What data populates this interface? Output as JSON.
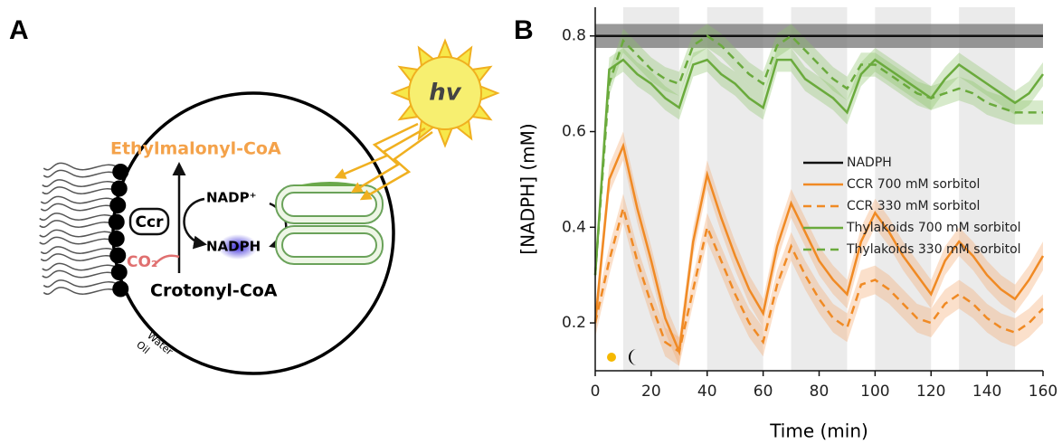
{
  "panel_a": {
    "label": "A",
    "hv": "hv",
    "product": "Ethylmalonyl-CoA",
    "enzyme": "Ccr",
    "oxidized": "NADP⁺",
    "reduced": "NADPH",
    "co2": "CO₂",
    "substrate": "Crotonyl-CoA",
    "water": "Water",
    "oil": "Oil"
  },
  "chart_data": {
    "type": "line",
    "panel_label": "B",
    "x_label": "Time (min)",
    "y_label": "[NADPH] (mM)",
    "xlim": [
      0,
      160
    ],
    "xticks": [
      0,
      20,
      40,
      60,
      80,
      100,
      120,
      140,
      160
    ],
    "ylim": [
      0.1,
      0.86
    ],
    "yticks": [
      0.2,
      0.4,
      0.6,
      0.8
    ],
    "dark_periods": [
      [
        10,
        30
      ],
      [
        40,
        60
      ],
      [
        70,
        90
      ],
      [
        100,
        120
      ],
      [
        130,
        150
      ]
    ],
    "legend": "center right",
    "x": [
      0,
      5,
      10,
      15,
      20,
      25,
      30,
      35,
      40,
      45,
      50,
      55,
      60,
      65,
      70,
      75,
      80,
      85,
      90,
      95,
      100,
      105,
      110,
      115,
      120,
      125,
      130,
      135,
      140,
      145,
      150,
      155,
      160
    ],
    "series": [
      {
        "name": "NADPH",
        "color": "#111111",
        "band_color": "#777777",
        "dashed": false,
        "error": 0.025,
        "x": [
          0,
          160
        ],
        "values": [
          0.8,
          0.8
        ]
      },
      {
        "name": "CCR 700 mM sorbitol",
        "color": "#f08a24",
        "band_color": "#f4a76a",
        "dashed": false,
        "error": 0.03,
        "values": [
          0.2,
          0.5,
          0.57,
          0.44,
          0.33,
          0.21,
          0.14,
          0.37,
          0.51,
          0.42,
          0.34,
          0.27,
          0.22,
          0.36,
          0.45,
          0.39,
          0.33,
          0.29,
          0.26,
          0.37,
          0.43,
          0.39,
          0.34,
          0.3,
          0.26,
          0.33,
          0.37,
          0.34,
          0.3,
          0.27,
          0.25,
          0.29,
          0.34
        ]
      },
      {
        "name": "CCR 330 mM sorbitol",
        "color": "#f08a24",
        "band_color": "#f4a76a",
        "dashed": true,
        "error": 0.03,
        "values": [
          0.2,
          0.33,
          0.44,
          0.33,
          0.24,
          0.16,
          0.14,
          0.27,
          0.4,
          0.33,
          0.26,
          0.2,
          0.16,
          0.28,
          0.36,
          0.3,
          0.25,
          0.21,
          0.19,
          0.28,
          0.29,
          0.27,
          0.24,
          0.21,
          0.2,
          0.24,
          0.26,
          0.24,
          0.21,
          0.19,
          0.18,
          0.2,
          0.23
        ]
      },
      {
        "name": "Thylakoids 700 mM sorbitol",
        "color": "#6aaa3c",
        "band_color": "#8cc46a",
        "dashed": false,
        "error": 0.025,
        "values": [
          0.3,
          0.73,
          0.75,
          0.72,
          0.7,
          0.67,
          0.65,
          0.74,
          0.75,
          0.72,
          0.7,
          0.67,
          0.65,
          0.75,
          0.75,
          0.71,
          0.69,
          0.67,
          0.64,
          0.72,
          0.75,
          0.73,
          0.71,
          0.69,
          0.67,
          0.71,
          0.74,
          0.72,
          0.7,
          0.68,
          0.66,
          0.68,
          0.72
        ]
      },
      {
        "name": "Thylakoids 330 mM sorbitol",
        "color": "#6aaa3c",
        "band_color": "#8cc46a",
        "dashed": true,
        "error": 0.025,
        "values": [
          0.3,
          0.7,
          0.79,
          0.76,
          0.73,
          0.71,
          0.7,
          0.78,
          0.8,
          0.78,
          0.75,
          0.72,
          0.7,
          0.78,
          0.8,
          0.77,
          0.74,
          0.71,
          0.69,
          0.74,
          0.74,
          0.72,
          0.7,
          0.68,
          0.67,
          0.68,
          0.69,
          0.68,
          0.66,
          0.65,
          0.64,
          0.64,
          0.64
        ]
      }
    ]
  }
}
